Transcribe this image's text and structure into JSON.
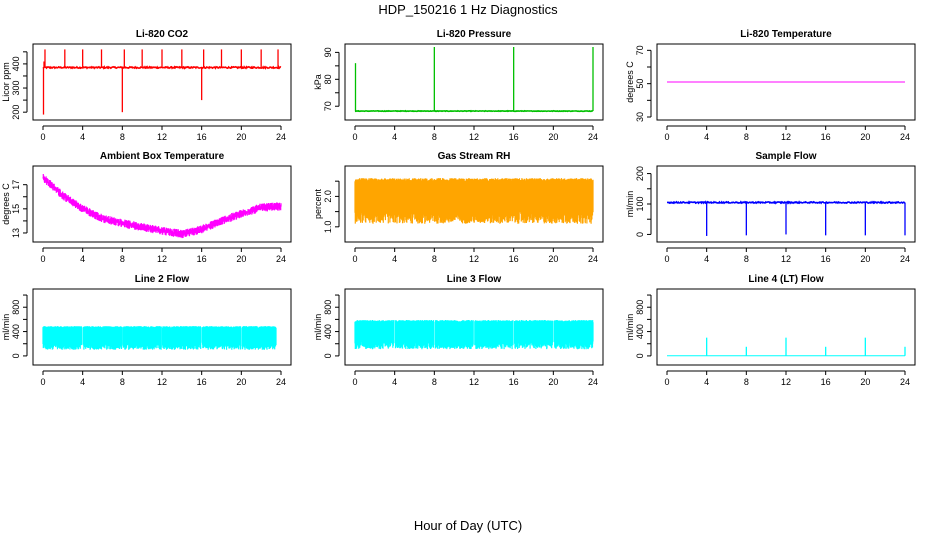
{
  "page": {
    "title": "HDP_150216  1 Hz Diagnostics",
    "xlabel": "Hour of Day (UTC)"
  },
  "chart_data": [
    {
      "type": "line",
      "title": "Li-820 CO2",
      "ylabel": "Licor ppm",
      "color": "#ff0000",
      "xlim": [
        0,
        24
      ],
      "ylim": [
        180,
        470
      ],
      "yticks": [
        200,
        250,
        300,
        350,
        400,
        450
      ],
      "yticklabels": [
        "200",
        "",
        "300",
        "",
        "400",
        ""
      ],
      "xticks": [
        0,
        4,
        8,
        12,
        16,
        20,
        24
      ],
      "baseline": 385,
      "noise": 6,
      "spikes": [
        {
          "x": 0.05,
          "y": 190
        },
        {
          "x": 0.1,
          "y": 410
        },
        {
          "x": 0.2,
          "y": 460
        },
        {
          "x": 2.2,
          "y": 460
        },
        {
          "x": 4.0,
          "y": 460
        },
        {
          "x": 5.9,
          "y": 460
        },
        {
          "x": 8.0,
          "y": 200
        },
        {
          "x": 8.2,
          "y": 460
        },
        {
          "x": 10.0,
          "y": 460
        },
        {
          "x": 12.0,
          "y": 460
        },
        {
          "x": 14.0,
          "y": 460
        },
        {
          "x": 16.0,
          "y": 250
        },
        {
          "x": 16.2,
          "y": 460
        },
        {
          "x": 18.0,
          "y": 460
        },
        {
          "x": 20.0,
          "y": 460
        },
        {
          "x": 22.0,
          "y": 460
        },
        {
          "x": 23.7,
          "y": 460
        }
      ]
    },
    {
      "type": "line",
      "title": "Li-820 Pressure",
      "ylabel": "kPa",
      "color": "#00c000",
      "xlim": [
        0,
        24
      ],
      "ylim": [
        66,
        92
      ],
      "yticks": [
        70,
        75,
        80,
        85,
        90
      ],
      "yticklabels": [
        "70",
        "",
        "80",
        "",
        "90"
      ],
      "xticks": [
        0,
        4,
        8,
        12,
        16,
        20,
        24
      ],
      "baseline": 68.2,
      "noise": 0.2,
      "spikes": [
        {
          "x": 0.05,
          "y": 86
        },
        {
          "x": 8.0,
          "y": 92
        },
        {
          "x": 16.0,
          "y": 92
        },
        {
          "x": 24.0,
          "y": 92
        }
      ]
    },
    {
      "type": "line",
      "title": "Li-820 Temperature",
      "ylabel": "degrees C",
      "color": "#ff00ff",
      "xlim": [
        0,
        24
      ],
      "ylim": [
        30,
        72
      ],
      "yticks": [
        30,
        40,
        50,
        60,
        70
      ],
      "yticklabels": [
        "30",
        "",
        "50",
        "",
        "70"
      ],
      "xticks": [
        0,
        4,
        8,
        12,
        16,
        20,
        24
      ],
      "baseline": 51,
      "noise": 0,
      "spikes": []
    },
    {
      "type": "line",
      "title": "Ambient Box Temperature",
      "ylabel": "degrees C",
      "color": "#ff00ff",
      "xlim": [
        0,
        24
      ],
      "ylim": [
        12.5,
        18.3
      ],
      "yticks": [
        13,
        14,
        15,
        16,
        17
      ],
      "yticklabels": [
        "13",
        "",
        "15",
        "",
        "17"
      ],
      "xticks": [
        0,
        4,
        8,
        12,
        16,
        20,
        24
      ],
      "trend": [
        [
          0,
          17.6
        ],
        [
          2,
          16.1
        ],
        [
          4,
          15.0
        ],
        [
          6,
          14.2
        ],
        [
          8,
          13.8
        ],
        [
          10,
          13.5
        ],
        [
          12,
          13.2
        ],
        [
          14,
          12.9
        ],
        [
          16,
          13.3
        ],
        [
          18,
          14.0
        ],
        [
          20,
          14.6
        ],
        [
          22,
          15.1
        ],
        [
          24,
          15.2
        ]
      ],
      "noise": 0.35,
      "spikes": []
    },
    {
      "type": "line",
      "title": "Gas Stream RH",
      "ylabel": "percent",
      "color": "#ffa500",
      "xlim": [
        0,
        24
      ],
      "ylim": [
        0.6,
        2.9
      ],
      "yticks": [
        1.0,
        1.5,
        2.0,
        2.5
      ],
      "yticklabels": [
        "1.0",
        "",
        "2.0",
        ""
      ],
      "xticks": [
        0,
        4,
        8,
        12,
        16,
        20,
        24
      ],
      "band": [
        1.1,
        2.6
      ],
      "noise": 0,
      "spikes": []
    },
    {
      "type": "line",
      "title": "Sample Flow",
      "ylabel": "ml/min",
      "color": "#0000ff",
      "xlim": [
        0,
        24
      ],
      "ylim": [
        -15,
        215
      ],
      "yticks": [
        0,
        50,
        100,
        150,
        200
      ],
      "yticklabels": [
        "0",
        "",
        "100",
        "",
        "200"
      ],
      "xticks": [
        0,
        4,
        8,
        12,
        16,
        20,
        24
      ],
      "baseline": 105,
      "noise": 4,
      "spikes": [
        {
          "x": 4.0,
          "y": -5
        },
        {
          "x": 8.0,
          "y": -3
        },
        {
          "x": 12.0,
          "y": 0
        },
        {
          "x": 16.0,
          "y": -3
        },
        {
          "x": 20.0,
          "y": -3
        },
        {
          "x": 24.0,
          "y": -3
        }
      ]
    },
    {
      "type": "line",
      "title": "Line 2 Flow",
      "ylabel": "ml/min",
      "color": "#00ffff",
      "xlim": [
        0,
        24
      ],
      "ylim": [
        -100,
        1050
      ],
      "yticks": [
        0,
        200,
        400,
        600,
        800,
        1000
      ],
      "yticklabels": [
        "0",
        "",
        "400",
        "",
        "800",
        ""
      ],
      "xticks": [
        0,
        4,
        8,
        12,
        16,
        20,
        24
      ],
      "band": [
        100,
        490
      ],
      "gaps": [
        4,
        8,
        12,
        16,
        20
      ],
      "band_end": 23.5,
      "noise": 0,
      "spikes": []
    },
    {
      "type": "line",
      "title": "Line 3 Flow",
      "ylabel": "ml/min",
      "color": "#00ffff",
      "xlim": [
        0,
        24
      ],
      "ylim": [
        -100,
        1050
      ],
      "yticks": [
        0,
        200,
        400,
        600,
        800,
        1000
      ],
      "yticklabels": [
        "0",
        "",
        "400",
        "",
        "800",
        ""
      ],
      "xticks": [
        0,
        4,
        8,
        12,
        16,
        20,
        24
      ],
      "band": [
        110,
        590
      ],
      "gaps": [
        4,
        8,
        12,
        16,
        20
      ],
      "band_end": 24,
      "noise": 0,
      "spikes": []
    },
    {
      "type": "line",
      "title": "Line 4 (LT) Flow",
      "ylabel": "ml/min",
      "color": "#00ffff",
      "xlim": [
        0,
        24
      ],
      "ylim": [
        -100,
        1050
      ],
      "yticks": [
        0,
        200,
        400,
        600,
        800,
        1000
      ],
      "yticklabels": [
        "0",
        "",
        "400",
        "",
        "800",
        ""
      ],
      "xticks": [
        0,
        4,
        8,
        12,
        16,
        20,
        24
      ],
      "baseline": 2,
      "noise": 0,
      "spikes": [
        {
          "x": 4.0,
          "y": 300
        },
        {
          "x": 8.0,
          "y": 150
        },
        {
          "x": 12.0,
          "y": 300
        },
        {
          "x": 16.0,
          "y": 150
        },
        {
          "x": 20.0,
          "y": 300
        },
        {
          "x": 24.0,
          "y": 150
        }
      ]
    }
  ]
}
